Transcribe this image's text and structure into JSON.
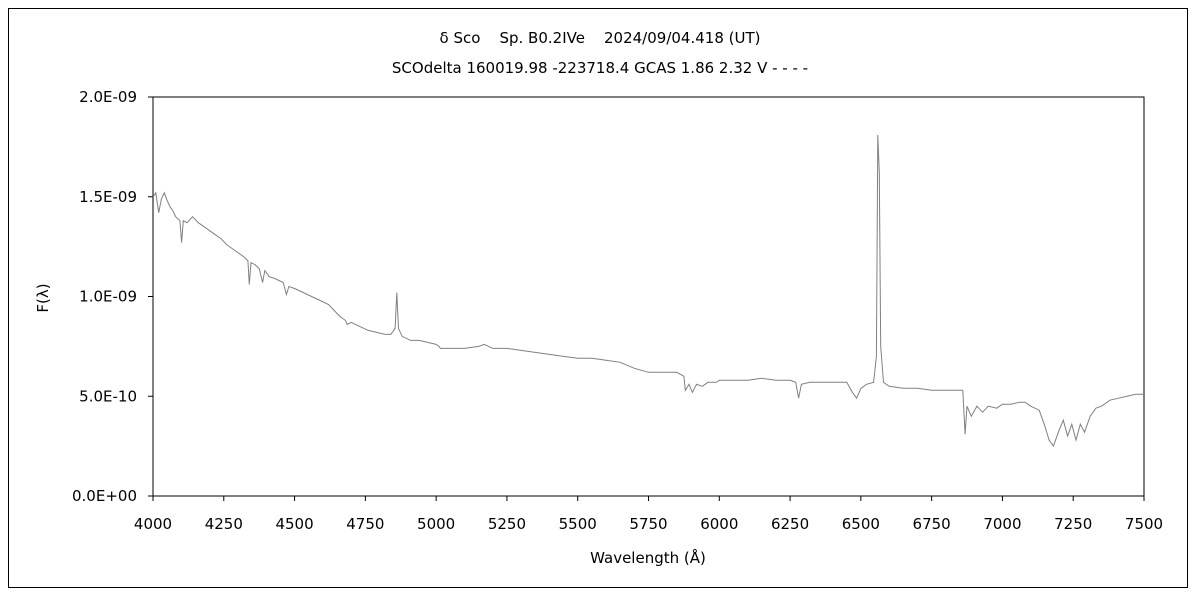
{
  "chart_data": {
    "type": "line",
    "title": "δ Sco    Sp. B0.2IVe    2024/09/04.418 (UT)",
    "subtitle": "SCOdelta 160019.98 -223718.4 GCAS 1.86 2.32 V - - - -",
    "xlabel": "Wavelength (Å)",
    "ylabel": "F(λ)",
    "xlim": [
      4000,
      7500
    ],
    "ylim": [
      0,
      2e-09
    ],
    "x_ticks": [
      "4000",
      "4250",
      "4500",
      "4750",
      "5000",
      "5250",
      "5500",
      "5750",
      "6000",
      "6250",
      "6500",
      "6750",
      "7000",
      "7250",
      "7500"
    ],
    "y_ticks": [
      "0.0E+00",
      "5.0E-10",
      "1.0E-09",
      "1.5E-09",
      "2.0E-09"
    ],
    "grid": false,
    "line_color": "#808080",
    "series": [
      {
        "points": [
          [
            4000,
            1.5e-09
          ],
          [
            4010,
            1.52e-09
          ],
          [
            4020,
            1.42e-09
          ],
          [
            4030,
            1.49e-09
          ],
          [
            4040,
            1.52e-09
          ],
          [
            4050,
            1.48e-09
          ],
          [
            4060,
            1.45e-09
          ],
          [
            4070,
            1.43e-09
          ],
          [
            4080,
            1.4e-09
          ],
          [
            4095,
            1.38e-09
          ],
          [
            4101,
            1.27e-09
          ],
          [
            4107,
            1.38e-09
          ],
          [
            4120,
            1.37e-09
          ],
          [
            4140,
            1.4e-09
          ],
          [
            4160,
            1.37e-09
          ],
          [
            4180,
            1.35e-09
          ],
          [
            4200,
            1.33e-09
          ],
          [
            4220,
            1.31e-09
          ],
          [
            4240,
            1.29e-09
          ],
          [
            4260,
            1.26e-09
          ],
          [
            4280,
            1.24e-09
          ],
          [
            4300,
            1.22e-09
          ],
          [
            4320,
            1.2e-09
          ],
          [
            4335,
            1.18e-09
          ],
          [
            4340,
            1.06e-09
          ],
          [
            4346,
            1.17e-09
          ],
          [
            4360,
            1.16e-09
          ],
          [
            4375,
            1.14e-09
          ],
          [
            4387,
            1.07e-09
          ],
          [
            4395,
            1.13e-09
          ],
          [
            4410,
            1.1e-09
          ],
          [
            4430,
            1.09e-09
          ],
          [
            4460,
            1.07e-09
          ],
          [
            4471,
            1.01e-09
          ],
          [
            4480,
            1.05e-09
          ],
          [
            4500,
            1.04e-09
          ],
          [
            4530,
            1.02e-09
          ],
          [
            4560,
            1e-09
          ],
          [
            4590,
            9.8e-10
          ],
          [
            4620,
            9.6e-10
          ],
          [
            4640,
            9.3e-10
          ],
          [
            4660,
            9e-10
          ],
          [
            4680,
            8.8e-10
          ],
          [
            4686,
            8.6e-10
          ],
          [
            4700,
            8.7e-10
          ],
          [
            4730,
            8.5e-10
          ],
          [
            4760,
            8.3e-10
          ],
          [
            4790,
            8.2e-10
          ],
          [
            4820,
            8.1e-10
          ],
          [
            4840,
            8.1e-10
          ],
          [
            4855,
            8.4e-10
          ],
          [
            4861,
            1.02e-09
          ],
          [
            4867,
            8.4e-10
          ],
          [
            4880,
            8e-10
          ],
          [
            4910,
            7.8e-10
          ],
          [
            4940,
            7.8e-10
          ],
          [
            4970,
            7.7e-10
          ],
          [
            5000,
            7.6e-10
          ],
          [
            5010,
            7.5e-10
          ],
          [
            5015,
            7.4e-10
          ],
          [
            5050,
            7.4e-10
          ],
          [
            5100,
            7.4e-10
          ],
          [
            5150,
            7.5e-10
          ],
          [
            5170,
            7.6e-10
          ],
          [
            5200,
            7.4e-10
          ],
          [
            5250,
            7.4e-10
          ],
          [
            5300,
            7.3e-10
          ],
          [
            5350,
            7.2e-10
          ],
          [
            5400,
            7.1e-10
          ],
          [
            5450,
            7e-10
          ],
          [
            5500,
            6.9e-10
          ],
          [
            5550,
            6.9e-10
          ],
          [
            5600,
            6.8e-10
          ],
          [
            5650,
            6.7e-10
          ],
          [
            5700,
            6.4e-10
          ],
          [
            5750,
            6.2e-10
          ],
          [
            5800,
            6.2e-10
          ],
          [
            5850,
            6.2e-10
          ],
          [
            5875,
            6e-10
          ],
          [
            5880,
            5.3e-10
          ],
          [
            5893,
            5.6e-10
          ],
          [
            5905,
            5.2e-10
          ],
          [
            5920,
            5.6e-10
          ],
          [
            5940,
            5.5e-10
          ],
          [
            5960,
            5.7e-10
          ],
          [
            5990,
            5.7e-10
          ],
          [
            6000,
            5.8e-10
          ],
          [
            6050,
            5.8e-10
          ],
          [
            6100,
            5.8e-10
          ],
          [
            6150,
            5.9e-10
          ],
          [
            6200,
            5.8e-10
          ],
          [
            6250,
            5.8e-10
          ],
          [
            6270,
            5.7e-10
          ],
          [
            6280,
            4.9e-10
          ],
          [
            6290,
            5.6e-10
          ],
          [
            6320,
            5.7e-10
          ],
          [
            6350,
            5.7e-10
          ],
          [
            6400,
            5.7e-10
          ],
          [
            6450,
            5.7e-10
          ],
          [
            6470,
            5.2e-10
          ],
          [
            6485,
            4.9e-10
          ],
          [
            6500,
            5.4e-10
          ],
          [
            6520,
            5.6e-10
          ],
          [
            6545,
            5.7e-10
          ],
          [
            6555,
            7e-10
          ],
          [
            6560,
            1.81e-09
          ],
          [
            6565,
            1.62e-09
          ],
          [
            6570,
            7.5e-10
          ],
          [
            6580,
            5.7e-10
          ],
          [
            6600,
            5.5e-10
          ],
          [
            6650,
            5.4e-10
          ],
          [
            6700,
            5.4e-10
          ],
          [
            6750,
            5.3e-10
          ],
          [
            6800,
            5.3e-10
          ],
          [
            6860,
            5.3e-10
          ],
          [
            6868,
            3.1e-10
          ],
          [
            6875,
            4.5e-10
          ],
          [
            6890,
            4e-10
          ],
          [
            6910,
            4.5e-10
          ],
          [
            6930,
            4.2e-10
          ],
          [
            6950,
            4.5e-10
          ],
          [
            6980,
            4.4e-10
          ],
          [
            7000,
            4.6e-10
          ],
          [
            7030,
            4.6e-10
          ],
          [
            7060,
            4.7e-10
          ],
          [
            7080,
            4.7e-10
          ],
          [
            7100,
            4.5e-10
          ],
          [
            7130,
            4.3e-10
          ],
          [
            7150,
            3.5e-10
          ],
          [
            7165,
            2.8e-10
          ],
          [
            7180,
            2.5e-10
          ],
          [
            7200,
            3.3e-10
          ],
          [
            7215,
            3.8e-10
          ],
          [
            7230,
            3e-10
          ],
          [
            7245,
            3.6e-10
          ],
          [
            7260,
            2.8e-10
          ],
          [
            7275,
            3.6e-10
          ],
          [
            7290,
            3.2e-10
          ],
          [
            7310,
            4e-10
          ],
          [
            7330,
            4.4e-10
          ],
          [
            7350,
            4.5e-10
          ],
          [
            7380,
            4.8e-10
          ],
          [
            7410,
            4.9e-10
          ],
          [
            7440,
            5e-10
          ],
          [
            7470,
            5.1e-10
          ],
          [
            7500,
            5.1e-10
          ]
        ]
      }
    ]
  }
}
